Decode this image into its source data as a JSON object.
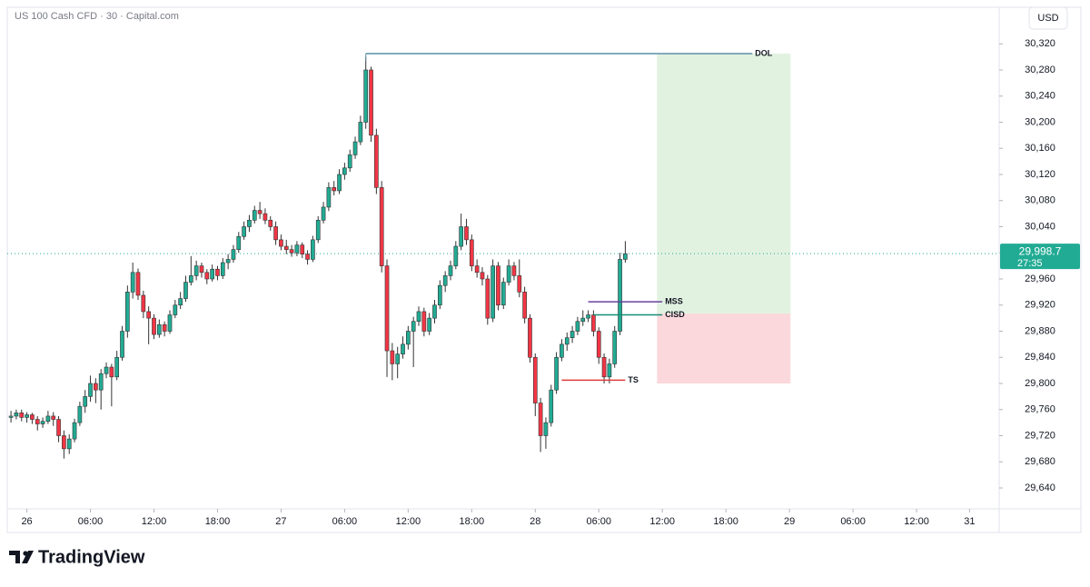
{
  "chart_data": {
    "type": "candlestick",
    "title": "US 100 Cash CFD · 30 · Capital.com",
    "currency": "USD",
    "brand": "TradingView",
    "up_color": "#22ab94",
    "down_color": "#f23645",
    "xlim": [
      -0.7,
      186.6
    ],
    "xticks": [
      {
        "value": 3,
        "label": "26"
      },
      {
        "value": 15,
        "label": "06:00"
      },
      {
        "value": 27,
        "label": "12:00"
      },
      {
        "value": 39,
        "label": "18:00"
      },
      {
        "value": 51,
        "label": "27"
      },
      {
        "value": 63,
        "label": "06:00"
      },
      {
        "value": 75,
        "label": "12:00"
      },
      {
        "value": 87,
        "label": "18:00"
      },
      {
        "value": 99,
        "label": "28"
      },
      {
        "value": 111,
        "label": "06:00"
      },
      {
        "value": 123,
        "label": "12:00"
      },
      {
        "value": 135,
        "label": "18:00"
      },
      {
        "value": 147,
        "label": "29"
      },
      {
        "value": 159,
        "label": "06:00"
      },
      {
        "value": 171,
        "label": "12:00"
      },
      {
        "value": 181,
        "label": "31"
      }
    ],
    "ylim": [
      29608,
      30376
    ],
    "yticks": [
      {
        "value": 29640,
        "label": "29,640"
      },
      {
        "value": 29680,
        "label": "29,680"
      },
      {
        "value": 29720,
        "label": "29,720"
      },
      {
        "value": 29760,
        "label": "29,760"
      },
      {
        "value": 29800,
        "label": "29,800"
      },
      {
        "value": 29840,
        "label": "29,840"
      },
      {
        "value": 29880,
        "label": "29,880"
      },
      {
        "value": 29920,
        "label": "29,920"
      },
      {
        "value": 29960,
        "label": "29,960"
      },
      {
        "value": 30000,
        "label": "30,000"
      },
      {
        "value": 30040,
        "label": "30,040"
      },
      {
        "value": 30080,
        "label": "30,080"
      },
      {
        "value": 30120,
        "label": "30,120"
      },
      {
        "value": 30160,
        "label": "30,160"
      },
      {
        "value": 30200,
        "label": "30,200"
      },
      {
        "value": 30240,
        "label": "30,240"
      },
      {
        "value": 30280,
        "label": "30,280"
      },
      {
        "value": 30320,
        "label": "30,320"
      }
    ],
    "candles": [
      [
        29748,
        29758,
        29740,
        29750
      ],
      [
        29750,
        29760,
        29745,
        29755
      ],
      [
        29755,
        29760,
        29742,
        29748
      ],
      [
        29748,
        29756,
        29740,
        29752
      ],
      [
        29752,
        29755,
        29738,
        29745
      ],
      [
        29745,
        29750,
        29728,
        29738
      ],
      [
        29738,
        29748,
        29732,
        29742
      ],
      [
        29742,
        29758,
        29738,
        29750
      ],
      [
        29750,
        29756,
        29735,
        29745
      ],
      [
        29745,
        29750,
        29710,
        29720
      ],
      [
        29720,
        29728,
        29685,
        29700
      ],
      [
        29700,
        29722,
        29692,
        29715
      ],
      [
        29715,
        29746,
        29710,
        29740
      ],
      [
        29740,
        29772,
        29735,
        29765
      ],
      [
        29765,
        29790,
        29755,
        29780
      ],
      [
        29780,
        29812,
        29772,
        29800
      ],
      [
        29800,
        29808,
        29770,
        29790
      ],
      [
        29790,
        29822,
        29760,
        29815
      ],
      [
        29815,
        29832,
        29808,
        29825
      ],
      [
        29825,
        29830,
        29765,
        29810
      ],
      [
        29810,
        29850,
        29805,
        29840
      ],
      [
        29840,
        29888,
        29835,
        29880
      ],
      [
        29880,
        29950,
        29870,
        29940
      ],
      [
        29940,
        29985,
        29930,
        29970
      ],
      [
        29970,
        29976,
        29928,
        29935
      ],
      [
        29935,
        29942,
        29900,
        29910
      ],
      [
        29910,
        29918,
        29860,
        29900
      ],
      [
        29900,
        29906,
        29868,
        29875
      ],
      [
        29875,
        29898,
        29870,
        29890
      ],
      [
        29890,
        29895,
        29872,
        29880
      ],
      [
        29880,
        29912,
        29876,
        29905
      ],
      [
        29905,
        29928,
        29900,
        29920
      ],
      [
        29920,
        29940,
        29914,
        29930
      ],
      [
        29930,
        29965,
        29925,
        29955
      ],
      [
        29955,
        29995,
        29950,
        29965
      ],
      [
        29965,
        29988,
        29958,
        29980
      ],
      [
        29980,
        29985,
        29962,
        29970
      ],
      [
        29970,
        29975,
        29952,
        29960
      ],
      [
        29960,
        29982,
        29956,
        29975
      ],
      [
        29975,
        29980,
        29958,
        29965
      ],
      [
        29965,
        29992,
        29960,
        29985
      ],
      [
        29985,
        29998,
        29975,
        29990
      ],
      [
        29990,
        30012,
        29985,
        30005
      ],
      [
        30005,
        30032,
        30000,
        30025
      ],
      [
        30025,
        30048,
        30020,
        30040
      ],
      [
        30040,
        30058,
        30032,
        30050
      ],
      [
        30050,
        30072,
        30045,
        30065
      ],
      [
        30065,
        30078,
        30052,
        30060
      ],
      [
        30060,
        30068,
        30044,
        30050
      ],
      [
        30050,
        30056,
        30034,
        30040
      ],
      [
        30040,
        30048,
        30012,
        30020
      ],
      [
        30020,
        30028,
        30004,
        30010
      ],
      [
        30010,
        30020,
        29998,
        30005
      ],
      [
        30005,
        30012,
        29994,
        30000
      ],
      [
        30000,
        30018,
        29995,
        30012
      ],
      [
        30012,
        30016,
        29992,
        29998
      ],
      [
        29998,
        30004,
        29982,
        29990
      ],
      [
        29990,
        30026,
        29986,
        30020
      ],
      [
        30020,
        30056,
        30015,
        30050
      ],
      [
        30050,
        30078,
        30045,
        30070
      ],
      [
        30070,
        30108,
        30064,
        30100
      ],
      [
        30100,
        30110,
        30088,
        30095
      ],
      [
        30095,
        30128,
        30090,
        30120
      ],
      [
        30120,
        30138,
        30112,
        30130
      ],
      [
        30130,
        30158,
        30124,
        30150
      ],
      [
        30150,
        30178,
        30144,
        30170
      ],
      [
        30170,
        30210,
        30165,
        30200
      ],
      [
        30200,
        30300,
        30190,
        30280
      ],
      [
        30280,
        30285,
        30170,
        30180
      ],
      [
        30180,
        30190,
        30090,
        30100
      ],
      [
        30100,
        30110,
        29970,
        29980
      ],
      [
        29980,
        29990,
        29810,
        29850
      ],
      [
        29850,
        29862,
        29805,
        29830
      ],
      [
        29830,
        29856,
        29808,
        29845
      ],
      [
        29845,
        29872,
        29838,
        29860
      ],
      [
        29860,
        29888,
        29852,
        29880
      ],
      [
        29880,
        29902,
        29825,
        29895
      ],
      [
        29895,
        29918,
        29888,
        29910
      ],
      [
        29910,
        29916,
        29872,
        29880
      ],
      [
        29880,
        29908,
        29874,
        29900
      ],
      [
        29900,
        29928,
        29892,
        29920
      ],
      [
        29920,
        29958,
        29914,
        29950
      ],
      [
        29950,
        29972,
        29940,
        29965
      ],
      [
        29965,
        29988,
        29958,
        29980
      ],
      [
        29980,
        30018,
        29975,
        30010
      ],
      [
        30010,
        30060,
        30004,
        30040
      ],
      [
        30040,
        30052,
        30012,
        30020
      ],
      [
        30020,
        30028,
        29972,
        29980
      ],
      [
        29980,
        29990,
        29962,
        29970
      ],
      [
        29970,
        29978,
        29950,
        29960
      ],
      [
        29960,
        29966,
        29890,
        29900
      ],
      [
        29900,
        29990,
        29894,
        29980
      ],
      [
        29980,
        29986,
        29912,
        29920
      ],
      [
        29920,
        29962,
        29914,
        29955
      ],
      [
        29955,
        29990,
        29950,
        29980
      ],
      [
        29980,
        29986,
        29958,
        29965
      ],
      [
        29965,
        29990,
        29932,
        29940
      ],
      [
        29940,
        29948,
        29892,
        29900
      ],
      [
        29900,
        29906,
        29832,
        29840
      ],
      [
        29840,
        29846,
        29750,
        29770
      ],
      [
        29770,
        29778,
        29695,
        29720
      ],
      [
        29720,
        29748,
        29700,
        29740
      ],
      [
        29740,
        29798,
        29734,
        29790
      ],
      [
        29790,
        29848,
        29784,
        29840
      ],
      [
        29840,
        29868,
        29834,
        29860
      ],
      [
        29860,
        29878,
        29850,
        29870
      ],
      [
        29870,
        29888,
        29862,
        29880
      ],
      [
        29880,
        29902,
        29874,
        29895
      ],
      [
        29895,
        29912,
        29888,
        29900
      ],
      [
        29900,
        29912,
        29894,
        29905
      ],
      [
        29905,
        29912,
        29872,
        29880
      ],
      [
        29880,
        29886,
        29830,
        29840
      ],
      [
        29840,
        29846,
        29800,
        29810
      ],
      [
        29810,
        29838,
        29800,
        29830
      ],
      [
        29830,
        29888,
        29824,
        29880
      ],
      [
        29880,
        30000,
        29874,
        29990
      ],
      [
        29990,
        30018,
        29985,
        29998.7
      ]
    ],
    "zones": [
      {
        "top": 30305,
        "bottom": 29907,
        "from": 122,
        "to": 147.2,
        "color": "#e2f2e1"
      },
      {
        "top": 29907,
        "bottom": 29800,
        "from": 122,
        "to": 147.2,
        "color": "#fbd8dc"
      }
    ],
    "levels": [
      {
        "text": "DOL",
        "price": 30305,
        "from": 67,
        "to": 140,
        "color": "#5b8fa8"
      },
      {
        "text": "MSS",
        "price": 29925,
        "from": 109,
        "to": 123,
        "color": "#6a3fa0"
      },
      {
        "text": "CISD",
        "price": 29905,
        "from": 110,
        "to": 123,
        "color": "#129076"
      },
      {
        "text": "TS",
        "price": 29805,
        "from": 104,
        "to": 116,
        "color": "#e03a3a"
      }
    ],
    "last_price": {
      "value": 29998.7,
      "label": "29,998.7"
    },
    "countdown": "27:35"
  }
}
